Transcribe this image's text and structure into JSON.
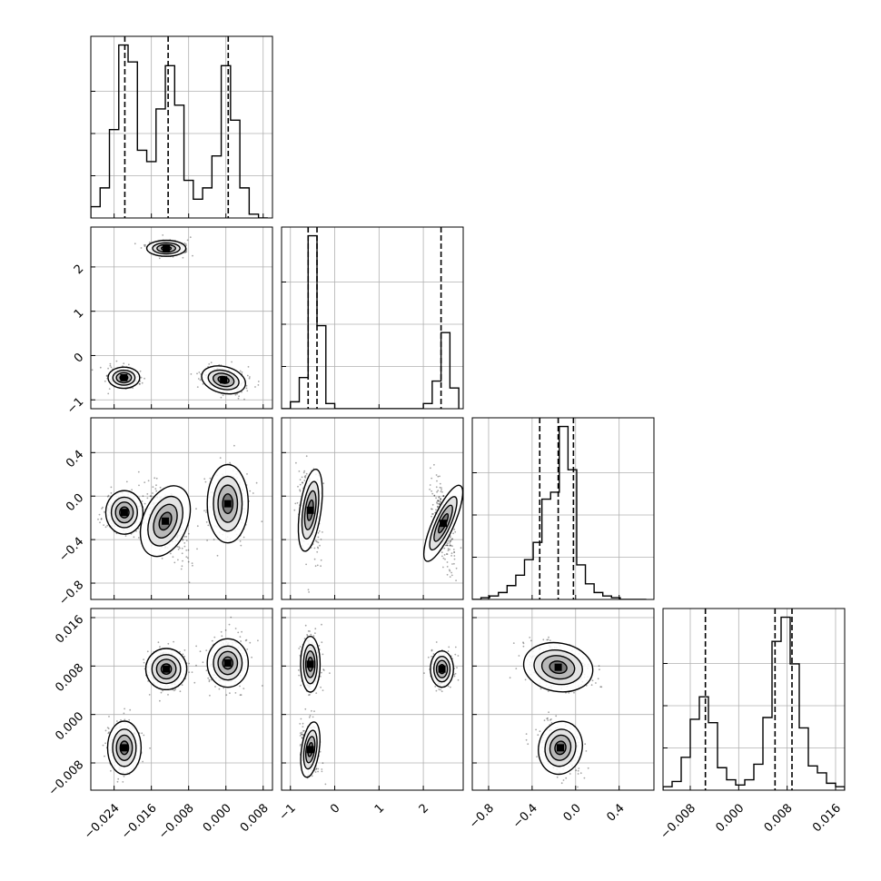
{
  "chart_data": {
    "type": "corner",
    "grid": true,
    "params": [
      {
        "range": [
          -0.029,
          0.01
        ],
        "ticks": [
          -0.024,
          -0.016,
          -0.008,
          0.0,
          0.008
        ],
        "tick_labels": [
          "−0.024",
          "−0.016",
          "−0.008",
          "0.000",
          "0.008"
        ],
        "quantiles": [
          -0.0217,
          -0.0124,
          0.0005
        ],
        "hist": {
          "edges": [
            -0.029,
            -0.027,
            -0.025,
            -0.023,
            -0.021,
            -0.019,
            -0.017,
            -0.015,
            -0.013,
            -0.011,
            -0.009,
            -0.007,
            -0.005,
            -0.003,
            -0.001,
            0.001,
            0.003,
            0.005,
            0.007,
            0.009
          ],
          "counts": [
            0.06,
            0.16,
            0.47,
            0.92,
            0.83,
            0.36,
            0.3,
            0.58,
            0.81,
            0.6,
            0.2,
            0.1,
            0.16,
            0.33,
            0.81,
            0.52,
            0.16,
            0.02,
            0.0
          ]
        }
      },
      {
        "range": [
          -1.2,
          2.9
        ],
        "ticks": [
          -1,
          0,
          1,
          2
        ],
        "tick_labels": [
          "−1",
          "0",
          "1",
          "2"
        ],
        "quantiles": [
          -0.6,
          -0.4,
          2.4
        ],
        "hist": {
          "edges": [
            -1.2,
            -1.0,
            -0.8,
            -0.6,
            -0.4,
            -0.2,
            0.0,
            0.2,
            0.4,
            0.6,
            0.8,
            1.0,
            1.2,
            1.4,
            1.6,
            1.8,
            2.0,
            2.2,
            2.4,
            2.6,
            2.8
          ],
          "counts": [
            0.0,
            0.04,
            0.18,
            1.0,
            0.48,
            0.03,
            0.0,
            0.0,
            0.0,
            0.0,
            0.0,
            0.0,
            0.0,
            0.0,
            0.0,
            0.0,
            0.03,
            0.16,
            0.44,
            0.12
          ]
        }
      },
      {
        "range": [
          -0.95,
          0.72
        ],
        "ticks": [
          -0.8,
          -0.4,
          0.0,
          0.4
        ],
        "tick_labels": [
          "−0.8",
          "−0.4",
          "0.0",
          "0.4"
        ],
        "quantiles": [
          -0.33,
          -0.16,
          -0.02
        ],
        "hist": {
          "edges": [
            -0.95,
            -0.87,
            -0.79,
            -0.71,
            -0.63,
            -0.55,
            -0.47,
            -0.39,
            -0.31,
            -0.23,
            -0.15,
            -0.07,
            0.01,
            0.09,
            0.17,
            0.25,
            0.33,
            0.41,
            0.49,
            0.57,
            0.65
          ],
          "counts": [
            0.0,
            0.01,
            0.02,
            0.04,
            0.08,
            0.14,
            0.23,
            0.33,
            0.58,
            0.62,
            1.0,
            0.75,
            0.2,
            0.09,
            0.04,
            0.02,
            0.01,
            0.0,
            0.0,
            0.0
          ]
        }
      },
      {
        "range": [
          -0.0125,
          0.0175
        ],
        "ticks": [
          -0.008,
          0.0,
          0.008,
          0.016
        ],
        "tick_labels": [
          "−0.008",
          "0.000",
          "0.008",
          "0.016"
        ],
        "quantiles": [
          -0.0055,
          0.006,
          0.0088
        ],
        "hist": {
          "edges": [
            -0.0125,
            -0.011,
            -0.0095,
            -0.008,
            -0.0065,
            -0.005,
            -0.0035,
            -0.002,
            -0.0005,
            0.001,
            0.0025,
            0.004,
            0.0055,
            0.007,
            0.0085,
            0.01,
            0.0115,
            0.013,
            0.0145,
            0.016,
            0.0175
          ],
          "counts": [
            0.02,
            0.05,
            0.19,
            0.41,
            0.54,
            0.39,
            0.13,
            0.06,
            0.03,
            0.06,
            0.15,
            0.42,
            0.86,
            1.0,
            0.73,
            0.36,
            0.14,
            0.1,
            0.04,
            0.02
          ]
        }
      }
    ],
    "scatter_panels": [
      {
        "row": 1,
        "col": 0,
        "modes": [
          {
            "mean": [
              -0.0219,
              -0.5
            ],
            "sd": [
              0.0017,
              0.12
            ],
            "rho": 0.0
          },
          {
            "mean": [
              -0.0128,
              2.42
            ],
            "sd": [
              0.0021,
              0.09
            ],
            "rho": 0.0
          },
          {
            "mean": [
              -0.0005,
              -0.55
            ],
            "sd": [
              0.0024,
              0.15
            ],
            "rho": -0.35
          }
        ]
      },
      {
        "row": 2,
        "col": 0,
        "modes": [
          {
            "mean": [
              -0.0218,
              -0.15
            ],
            "sd": [
              0.002,
              0.1
            ],
            "rho": 0.0
          },
          {
            "mean": [
              -0.013,
              -0.23
            ],
            "sd": [
              0.0024,
              0.17
            ],
            "rho": -0.55
          },
          {
            "mean": [
              0.0004,
              -0.07
            ],
            "sd": [
              0.0022,
              0.18
            ],
            "rho": 0.0
          }
        ]
      },
      {
        "row": 2,
        "col": 1,
        "modes": [
          {
            "mean": [
              -0.55,
              -0.13
            ],
            "sd": [
              0.12,
              0.19
            ],
            "rho": -0.2
          },
          {
            "mean": [
              2.45,
              -0.25
            ],
            "sd": [
              0.12,
              0.19
            ],
            "rho": -0.6
          }
        ]
      },
      {
        "row": 3,
        "col": 0,
        "modes": [
          {
            "mean": [
              -0.0218,
              -0.0055
            ],
            "sd": [
              0.0018,
              0.0022
            ],
            "rho": 0.0
          },
          {
            "mean": [
              -0.0128,
              0.0075
            ],
            "sd": [
              0.0022,
              0.0017
            ],
            "rho": 0.0
          },
          {
            "mean": [
              0.0004,
              0.0085
            ],
            "sd": [
              0.0022,
              0.002
            ],
            "rho": 0.0
          }
        ]
      },
      {
        "row": 3,
        "col": 1,
        "modes": [
          {
            "mean": [
              -0.55,
              0.0083
            ],
            "sd": [
              0.11,
              0.0023
            ],
            "rho": 0.0
          },
          {
            "mean": [
              -0.55,
              -0.0058
            ],
            "sd": [
              0.1,
              0.0023
            ],
            "rho": -0.2
          },
          {
            "mean": [
              2.42,
              0.0075
            ],
            "sd": [
              0.13,
              0.0015
            ],
            "rho": 0.0
          }
        ]
      },
      {
        "row": 3,
        "col": 2,
        "modes": [
          {
            "mean": [
              -0.16,
              0.0078
            ],
            "sd": [
              0.16,
              0.002
            ],
            "rho": -0.25
          },
          {
            "mean": [
              -0.14,
              -0.0055
            ],
            "sd": [
              0.1,
              0.0022
            ],
            "rho": -0.3
          }
        ]
      }
    ]
  }
}
